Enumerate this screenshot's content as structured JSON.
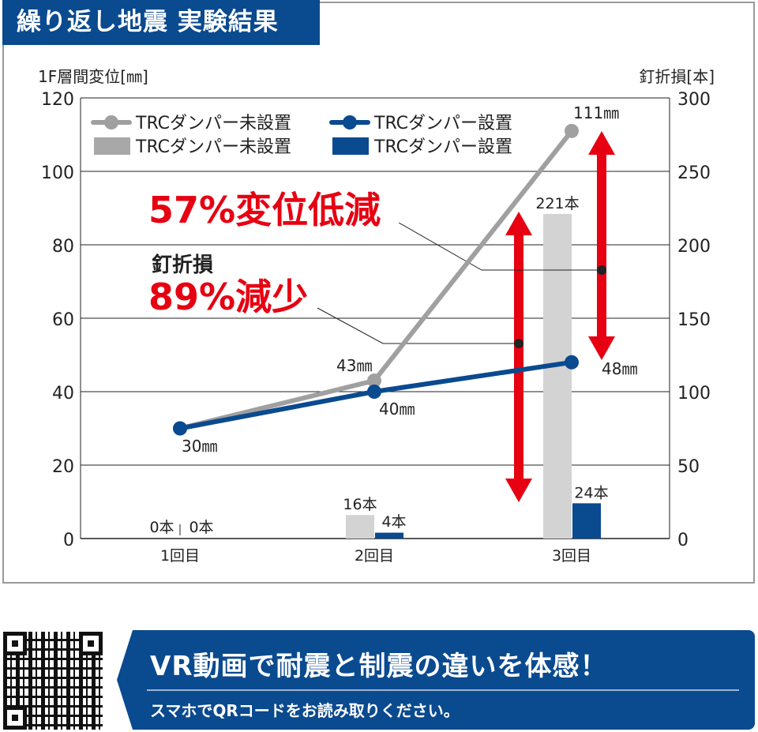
{
  "title": "繰り返し地震 実験結果",
  "chart_data": {
    "type": "bar+line",
    "categories": [
      "1回目",
      "2回目",
      "3回目"
    ],
    "left_axis": {
      "label": "1F層間変位[㎜]",
      "range": [
        0,
        120
      ],
      "ticks": [
        "0",
        "20",
        "40",
        "60",
        "80",
        "100",
        "120"
      ]
    },
    "right_axis": {
      "label": "釘折損[本]",
      "range": [
        0,
        300
      ],
      "ticks": [
        "0",
        "50",
        "100",
        "150",
        "200",
        "250",
        "300"
      ]
    },
    "grid": true,
    "legend_position": "top-left",
    "series": [
      {
        "name": "TRCダンパー未設置",
        "kind": "line",
        "axis": "left",
        "color": "#a0a0a0",
        "values": [
          30,
          43,
          111
        ],
        "labels": [
          "",
          "43㎜",
          "111㎜"
        ]
      },
      {
        "name": "TRCダンパー設置",
        "kind": "line",
        "axis": "left",
        "color": "#0a4a8f",
        "values": [
          30,
          40,
          48
        ],
        "labels": [
          "30㎜",
          "40㎜",
          "48㎜"
        ]
      },
      {
        "name": "TRCダンパー未設置",
        "kind": "bar",
        "axis": "right",
        "color": "#d3d3d3",
        "legend_color": "#a8a8a8",
        "values": [
          0,
          16,
          221
        ],
        "labels": [
          "0本",
          "16本",
          "221本"
        ]
      },
      {
        "name": "TRCダンパー設置",
        "kind": "bar",
        "axis": "right",
        "color": "#0a4a8f",
        "values": [
          0,
          4,
          24
        ],
        "labels": [
          "0本",
          "4本",
          "24本"
        ]
      }
    ],
    "annotations": {
      "displacement": "57%変位低減",
      "nail_label": "釘折損",
      "nail": "89%減少"
    },
    "accent": "#e60012"
  },
  "banner": {
    "headline": "VR動画で耐震と制震の違いを体感！",
    "sub": "スマホでQRコードをお読み取りください。"
  }
}
